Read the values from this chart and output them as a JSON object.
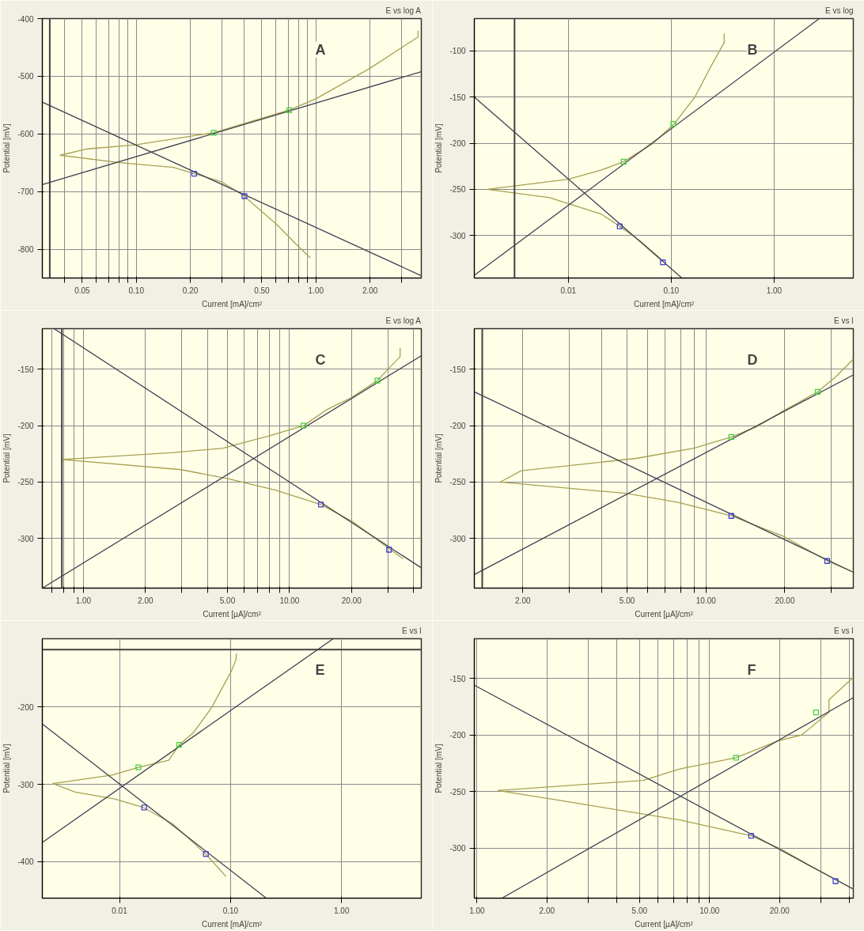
{
  "chart_data": [
    {
      "type": "line",
      "title": "E vs log A",
      "xlabel": "Current [mA]/cm²",
      "ylabel": "Potential [mV]",
      "log": "x",
      "grid": true,
      "annotations": [
        "A"
      ],
      "xlim": [
        0.03,
        3.86
      ],
      "ylim": [
        -850,
        -400
      ],
      "xticks": [
        {
          "value": 0.04,
          "label": null
        },
        {
          "value": 0.05,
          "label": "0.05"
        },
        {
          "value": 0.06,
          "label": null
        },
        {
          "value": 0.07,
          "label": null
        },
        {
          "value": 0.08,
          "label": null
        },
        {
          "value": 0.09,
          "label": null
        },
        {
          "value": 0.1,
          "label": "0.10"
        },
        {
          "value": 0.2,
          "label": "0.20"
        },
        {
          "value": 0.3,
          "label": null
        },
        {
          "value": 0.4,
          "label": null
        },
        {
          "value": 0.5,
          "label": "0.50"
        },
        {
          "value": 0.6,
          "label": null
        },
        {
          "value": 0.7,
          "label": null
        },
        {
          "value": 0.8,
          "label": null
        },
        {
          "value": 0.9,
          "label": null
        },
        {
          "value": 1,
          "label": "1.00"
        },
        {
          "value": 2,
          "label": "2.00"
        },
        {
          "value": 3,
          "label": null
        }
      ],
      "yticks": [
        -800,
        -700,
        -600,
        -500,
        -400
      ],
      "ref_lines": [
        {
          "axis": "x",
          "value": 0.033,
          "color": "#404040"
        }
      ],
      "series": [
        {
          "type": "line",
          "color": "#a8a050",
          "x": [
            3.7,
            3.7,
            1.98,
            1.0,
            0.72,
            0.269,
            0.099,
            0.0535,
            0.0377,
            0.0808,
            0.161,
            0.211,
            0.298,
            0.399,
            0.48,
            0.61,
            0.78,
            0.93
          ],
          "values": [
            -421,
            -432,
            -487,
            -539,
            -558,
            -598,
            -619,
            -626,
            -637,
            -650,
            -658,
            -669,
            -683,
            -708,
            -730,
            -758,
            -792,
            -815
          ]
        },
        {
          "type": "line",
          "color": "#404050",
          "x": [
            0.03,
            3.86
          ],
          "values": [
            -688,
            -492
          ]
        },
        {
          "type": "line",
          "color": "#404050",
          "x": [
            0.03,
            3.86
          ],
          "values": [
            -545,
            -846
          ]
        },
        {
          "type": "scatter",
          "marker": "square",
          "color": "#40d040",
          "x": [
            0.27,
            0.71
          ],
          "values": [
            -598,
            -559
          ]
        },
        {
          "type": "scatter",
          "marker": "square",
          "color": "#4040d0",
          "x": [
            0.21,
            0.4
          ],
          "values": [
            -669,
            -708
          ]
        }
      ]
    },
    {
      "type": "line",
      "title": "E vs log",
      "xlabel": "Current [mA]/cm²",
      "ylabel": "Potential [mV]",
      "log": "x",
      "grid": true,
      "annotations": [
        "B"
      ],
      "xlim": [
        0.00122,
        5.89
      ],
      "ylim": [
        -346,
        -65
      ],
      "xticks": [
        {
          "value": 0.01,
          "label": "0.01"
        },
        {
          "value": 0.1,
          "label": "0.10"
        },
        {
          "value": 1,
          "label": "1.00"
        }
      ],
      "yticks": [
        -300,
        -250,
        -200,
        -150,
        -100
      ],
      "ref_lines": [
        {
          "axis": "x",
          "value": 0.003,
          "color": "#404040"
        }
      ],
      "series": [
        {
          "type": "line",
          "color": "#a8a050",
          "x": [
            0.327,
            0.327,
            0.24,
            0.17,
            0.107,
            0.067,
            0.0345,
            0.021,
            0.01,
            0.00163,
            0.00658,
            0.0118,
            0.0211,
            0.0316,
            0.05,
            0.0845
          ],
          "values": [
            -81,
            -91,
            -118,
            -150,
            -179,
            -200,
            -220,
            -229,
            -239,
            -250,
            -259,
            -268,
            -277,
            -290,
            -306,
            -328
          ]
        },
        {
          "type": "line",
          "color": "#404050",
          "x": [
            0.00122,
            2.75
          ],
          "values": [
            -343,
            -65
          ]
        },
        {
          "type": "line",
          "color": "#404050",
          "x": [
            0.00122,
            0.127
          ],
          "values": [
            -150,
            -346
          ]
        },
        {
          "type": "scatter",
          "marker": "square",
          "color": "#40d040",
          "x": [
            0.0345,
            0.105
          ],
          "values": [
            -220,
            -179
          ]
        },
        {
          "type": "scatter",
          "marker": "square",
          "color": "#4040d0",
          "x": [
            0.0316,
            0.083
          ],
          "values": [
            -290,
            -329
          ]
        }
      ]
    },
    {
      "type": "line",
      "title": "E vs log A",
      "xlabel": "Current [µA]/cm²",
      "ylabel": "Potential [mV]",
      "log": "x",
      "grid": true,
      "annotations": [
        "C"
      ],
      "xlim": [
        0.632,
        43.6
      ],
      "ylim": [
        -344,
        -114
      ],
      "xticks": [
        {
          "value": 0.7,
          "label": null
        },
        {
          "value": 0.8,
          "label": null
        },
        {
          "value": 0.9,
          "label": null
        },
        {
          "value": 1,
          "label": "1.00"
        },
        {
          "value": 2,
          "label": "2.00"
        },
        {
          "value": 3,
          "label": null
        },
        {
          "value": 4,
          "label": null
        },
        {
          "value": 5,
          "label": "5.00"
        },
        {
          "value": 6,
          "label": null
        },
        {
          "value": 7,
          "label": null
        },
        {
          "value": 8,
          "label": null
        },
        {
          "value": 9,
          "label": null
        },
        {
          "value": 10,
          "label": "10.00"
        },
        {
          "value": 20,
          "label": "20.00"
        },
        {
          "value": 30,
          "label": null
        },
        {
          "value": 40,
          "label": null
        }
      ],
      "yticks": [
        -300,
        -250,
        -200,
        -150
      ],
      "ref_lines": [
        {
          "axis": "x",
          "value": 0.786,
          "color": "#404040"
        }
      ],
      "series": [
        {
          "type": "line",
          "color": "#a8a050",
          "x": [
            34.4,
            34.4,
            30.4,
            26.7,
            20,
            15.1,
            11.7,
            8.0,
            4.76,
            2.66,
            0.786,
            2.98,
            5.02,
            8.48,
            14.2,
            20.2,
            30.4,
            35.6
          ],
          "values": [
            -131,
            -139,
            -149,
            -160,
            -175,
            -186,
            -200,
            -209,
            -220,
            -224,
            -230,
            -239,
            -247,
            -257,
            -270,
            -285,
            -309,
            -318
          ]
        },
        {
          "type": "line",
          "color": "#404050",
          "x": [
            0.632,
            43.6
          ],
          "values": [
            -344,
            -138
          ]
        },
        {
          "type": "line",
          "color": "#404050",
          "x": [
            0.72,
            43.6
          ],
          "values": [
            -114,
            -326
          ]
        },
        {
          "type": "scatter",
          "marker": "square",
          "color": "#40d040",
          "x": [
            11.7,
            26.7
          ],
          "values": [
            -200,
            -160
          ]
        },
        {
          "type": "scatter",
          "marker": "square",
          "color": "#4040d0",
          "x": [
            14.2,
            30.4
          ],
          "values": [
            -270,
            -310
          ]
        }
      ]
    },
    {
      "type": "line",
      "title": "E vs l",
      "xlabel": "Current [µA]/cm²",
      "ylabel": "Potential [mV]",
      "log": "x",
      "grid": true,
      "annotations": [
        "D"
      ],
      "xlim": [
        1.306,
        36.5
      ],
      "ylim": [
        -344,
        -114
      ],
      "xticks": [
        {
          "value": 2,
          "label": "2.00"
        },
        {
          "value": 3,
          "label": null
        },
        {
          "value": 4,
          "label": null
        },
        {
          "value": 5,
          "label": "5.00"
        },
        {
          "value": 6,
          "label": null
        },
        {
          "value": 7,
          "label": null
        },
        {
          "value": 8,
          "label": null
        },
        {
          "value": 9,
          "label": null
        },
        {
          "value": 10,
          "label": "10.00"
        },
        {
          "value": 20,
          "label": "20.00"
        },
        {
          "value": 30,
          "label": null
        }
      ],
      "yticks": [
        -300,
        -250,
        -200,
        -150
      ],
      "ref_lines": [
        {
          "axis": "x",
          "value": 1.4,
          "color": "#404040"
        }
      ],
      "series": [
        {
          "type": "line",
          "color": "#a8a050",
          "x": [
            36.5,
            31.2,
            26.7,
            19.7,
            15.6,
            12.5,
            9.0,
            5.41,
            1.97,
            1.64,
            4.94,
            7.83,
            12.5,
            19.7,
            29.1,
            35.8
          ],
          "values": [
            -141,
            -157,
            -170,
            -187,
            -201,
            -210,
            -220,
            -229,
            -240,
            -250,
            -260,
            -268,
            -280,
            -298,
            -320,
            -329
          ]
        },
        {
          "type": "line",
          "color": "#404050",
          "x": [
            1.306,
            36.5
          ],
          "values": [
            -332,
            -155
          ]
        },
        {
          "type": "line",
          "color": "#404050",
          "x": [
            1.306,
            36.5
          ],
          "values": [
            -170,
            -330
          ]
        },
        {
          "type": "scatter",
          "marker": "square",
          "color": "#40d040",
          "x": [
            12.5,
            26.7
          ],
          "values": [
            -210,
            -170
          ]
        },
        {
          "type": "scatter",
          "marker": "square",
          "color": "#4040d0",
          "x": [
            12.5,
            29
          ],
          "values": [
            -280,
            -320
          ]
        }
      ]
    },
    {
      "type": "line",
      "title": "E vs l",
      "xlabel": "Current [mA]/cm²",
      "ylabel": "Potential [mV]",
      "log": "x",
      "grid": true,
      "annotations": [
        "E"
      ],
      "xlim": [
        0.00202,
        5.22
      ],
      "ylim": [
        -447,
        -112
      ],
      "xticks": [
        {
          "value": 0.01,
          "label": "0.01"
        },
        {
          "value": 0.1,
          "label": "0.10"
        },
        {
          "value": 1,
          "label": "1.00"
        }
      ],
      "yticks": [
        -400,
        -300,
        -200
      ],
      "ref_lines": [
        {
          "axis": "y",
          "value": -126,
          "color": "#404040"
        }
      ],
      "series": [
        {
          "type": "line",
          "color": "#a8a050",
          "x": [
            0.113,
            0.112,
            0.1016,
            0.0675,
            0.0465,
            0.0345,
            0.0278,
            0.0148,
            0.00858,
            0.00252,
            0.004,
            0.0091,
            0.0165,
            0.0301,
            0.0589,
            0.0911
          ],
          "values": [
            -131,
            -139,
            -154,
            -201,
            -233,
            -249,
            -269,
            -278,
            -288,
            -299,
            -310,
            -319,
            -330,
            -351,
            -389,
            -419
          ]
        },
        {
          "type": "line",
          "color": "#404050",
          "x": [
            0.00202,
            0.84
          ],
          "values": [
            -375,
            -112
          ]
        },
        {
          "type": "line",
          "color": "#404050",
          "x": [
            0.00202,
            0.21
          ],
          "values": [
            -222,
            -447
          ]
        },
        {
          "type": "scatter",
          "marker": "square",
          "color": "#40d040",
          "x": [
            0.0148,
            0.0345
          ],
          "values": [
            -278,
            -249
          ]
        },
        {
          "type": "scatter",
          "marker": "square",
          "color": "#4040d0",
          "x": [
            0.0167,
            0.06
          ],
          "values": [
            -330,
            -390
          ]
        }
      ]
    },
    {
      "type": "line",
      "title": "E vs l",
      "xlabel": "Current [µA]/cm²",
      "ylabel": "Potential [mV]",
      "log": "x",
      "grid": true,
      "annotations": [
        "F"
      ],
      "xlim": [
        0.974,
        41.5
      ],
      "ylim": [
        -344,
        -115
      ],
      "xticks": [
        {
          "value": 1,
          "label": "1.00"
        },
        {
          "value": 2,
          "label": "2.00"
        },
        {
          "value": 3,
          "label": null
        },
        {
          "value": 4,
          "label": null
        },
        {
          "value": 5,
          "label": "5.00"
        },
        {
          "value": 6,
          "label": null
        },
        {
          "value": 7,
          "label": null
        },
        {
          "value": 8,
          "label": null
        },
        {
          "value": 9,
          "label": null
        },
        {
          "value": 10,
          "label": "10.00"
        },
        {
          "value": 20,
          "label": "20.00"
        },
        {
          "value": 30,
          "label": null
        },
        {
          "value": 40,
          "label": null
        }
      ],
      "yticks": [
        -300,
        -250,
        -200,
        -150
      ],
      "series": [
        {
          "type": "line",
          "color": "#a8a050",
          "x": [
            41.5,
            32.6,
            32.6,
            24.9,
            19.8,
            13.0,
            7.44,
            5.18,
            1.23,
            2.66,
            7.44,
            15.1,
            20,
            26.9,
            41.5
          ],
          "values": [
            -149,
            -169,
            -180,
            -200,
            -205,
            -220,
            -230,
            -240,
            -249,
            -260,
            -275,
            -289,
            -300,
            -315,
            -336
          ]
        },
        {
          "type": "line",
          "color": "#404050",
          "x": [
            1.28,
            41.5
          ],
          "values": [
            -344,
            -167
          ]
        },
        {
          "type": "line",
          "color": "#404050",
          "x": [
            0.974,
            41.5
          ],
          "values": [
            -156,
            -336
          ]
        },
        {
          "type": "scatter",
          "marker": "square",
          "color": "#40d040",
          "x": [
            13.0,
            28.7
          ],
          "values": [
            -220,
            -180
          ]
        },
        {
          "type": "scatter",
          "marker": "square",
          "color": "#4040d0",
          "x": [
            15.1,
            34.8
          ],
          "values": [
            -289,
            -329
          ]
        }
      ]
    }
  ]
}
